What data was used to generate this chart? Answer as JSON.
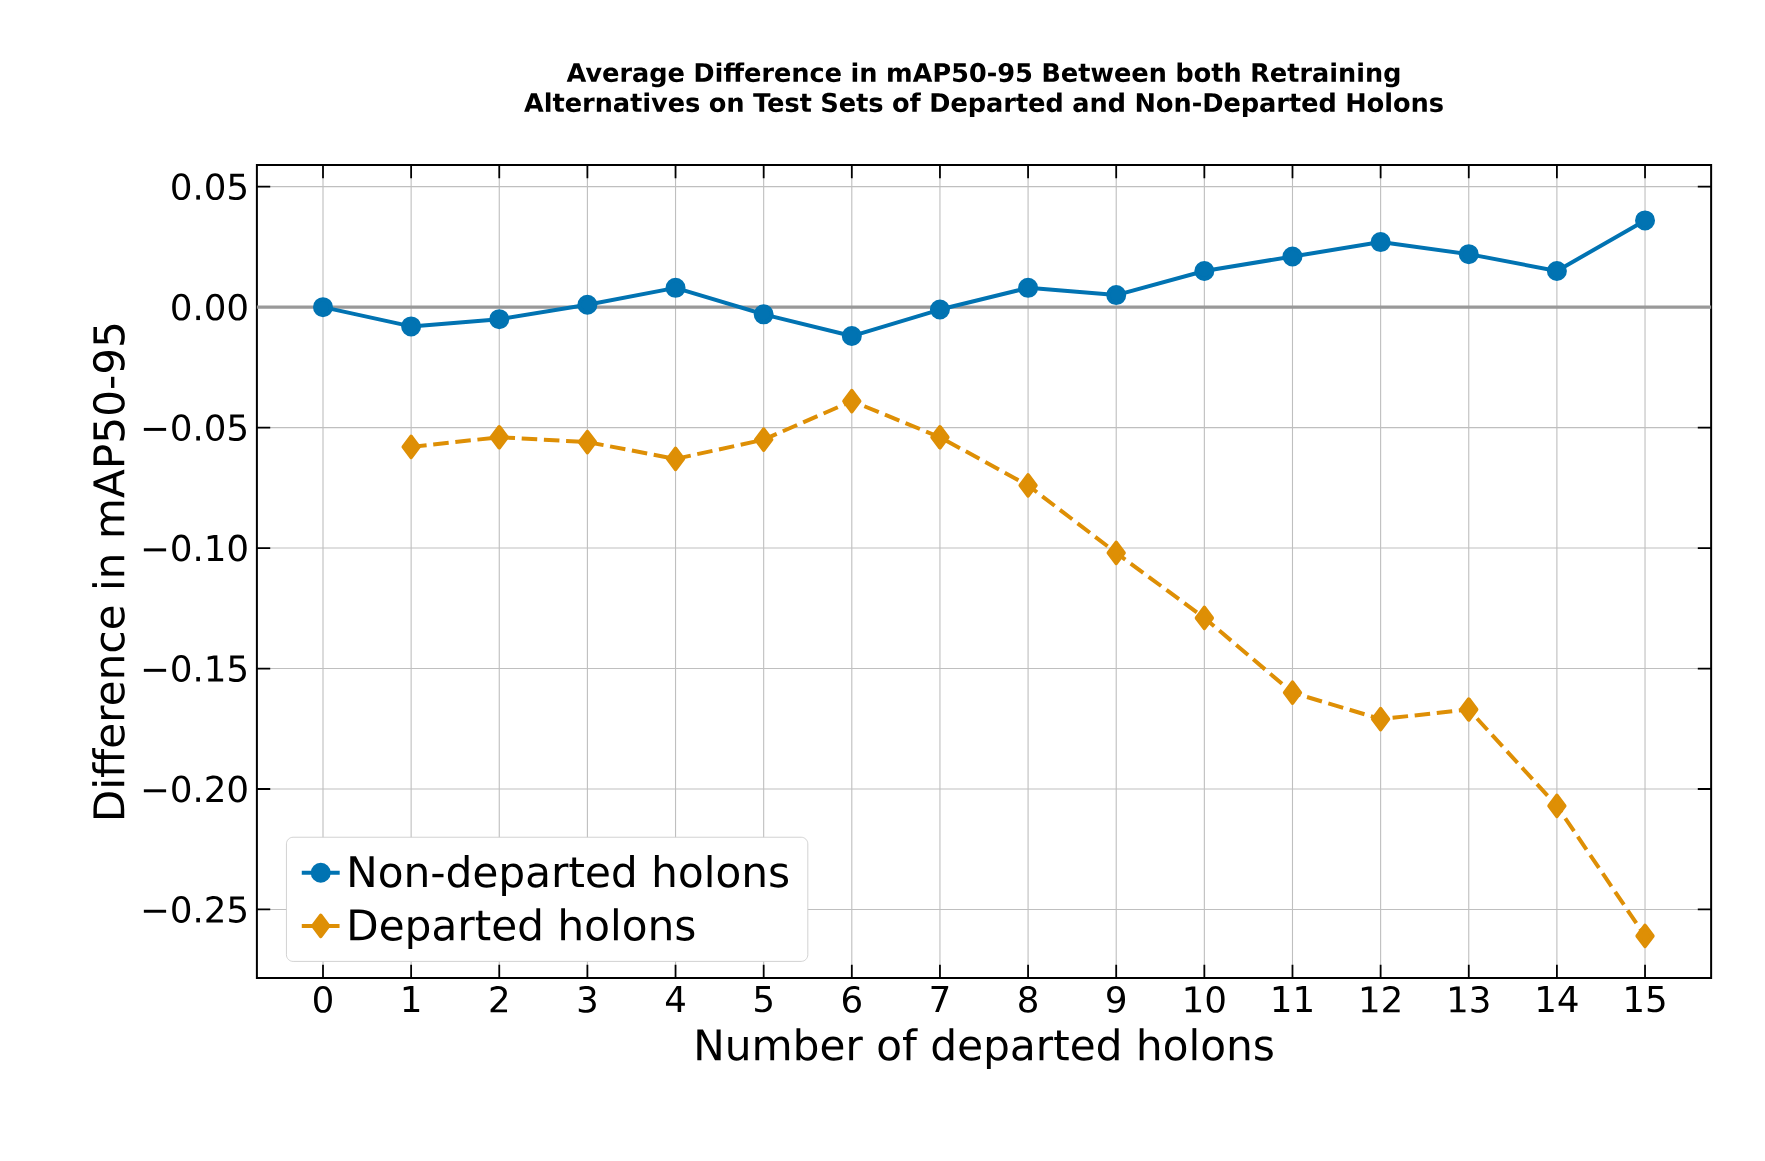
{
  "chart_data": {
    "type": "line",
    "title": "Average Difference in mAP50-95 Between both Retraining Alternatives on Test Sets of Departed and Non-Departed Holons",
    "xlabel": "Number of departed holons",
    "ylabel": "Difference in mAP50-95",
    "x": [
      0,
      1,
      2,
      3,
      4,
      5,
      6,
      7,
      8,
      9,
      10,
      11,
      12,
      13,
      14,
      15
    ],
    "series": [
      {
        "name": "Non-departed holons",
        "color": "#0173b2",
        "marker": "circle",
        "line_style": "solid",
        "values": [
          0.0,
          -0.008,
          -0.005,
          0.001,
          0.008,
          -0.003,
          -0.012,
          -0.001,
          0.008,
          0.005,
          0.015,
          0.021,
          0.027,
          0.022,
          0.015,
          0.036
        ]
      },
      {
        "name": "Departed holons",
        "color": "#de8f05",
        "marker": "diamond",
        "line_style": "dashed",
        "values": [
          null,
          -0.058,
          -0.054,
          -0.056,
          -0.063,
          -0.055,
          -0.039,
          -0.054,
          -0.074,
          -0.102,
          -0.129,
          -0.16,
          -0.171,
          -0.167,
          -0.207,
          -0.261
        ]
      }
    ],
    "xlim": [
      -0.75,
      15.75
    ],
    "ylim": [
      -0.2785,
      0.059
    ],
    "xticks": [
      0,
      1,
      2,
      3,
      4,
      5,
      6,
      7,
      8,
      9,
      10,
      11,
      12,
      13,
      14,
      15
    ],
    "yticks": [
      {
        "value": -0.25,
        "label": "−0.25"
      },
      {
        "value": -0.2,
        "label": "−0.20"
      },
      {
        "value": -0.15,
        "label": "−0.15"
      },
      {
        "value": -0.1,
        "label": "−0.10"
      },
      {
        "value": -0.05,
        "label": "−0.05"
      },
      {
        "value": 0.0,
        "label": "0.00"
      },
      {
        "value": 0.05,
        "label": "0.05"
      }
    ],
    "ref_lines": [
      {
        "axis": "y",
        "value": 0,
        "color": "#999999",
        "line_style": "solid"
      }
    ],
    "grid": true,
    "legend": "bottom left"
  }
}
